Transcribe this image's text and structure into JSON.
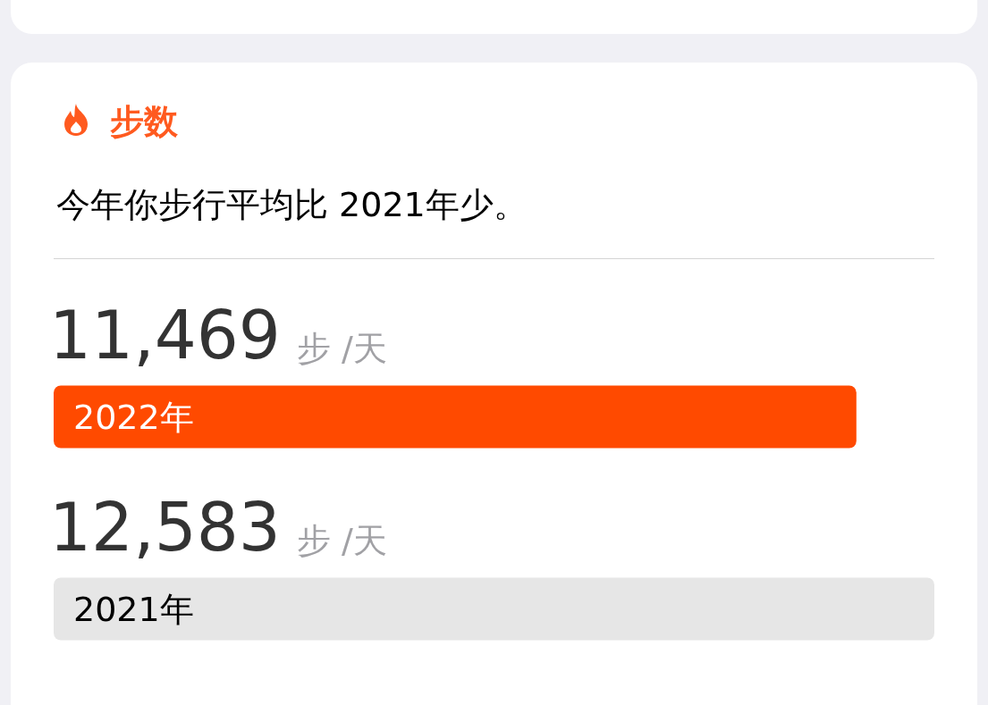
{
  "chart_data": {
    "type": "bar",
    "orientation": "horizontal",
    "title": "步数",
    "subtitle": "今年你步行平均比 2021年少。",
    "xlabel": "步 /天",
    "categories": [
      "2022年",
      "2021年"
    ],
    "values": [
      11469,
      12583
    ],
    "colors": [
      "#ff4a00",
      "#e6e6e6"
    ],
    "value_labels": [
      "11,469",
      "12,583"
    ]
  }
}
